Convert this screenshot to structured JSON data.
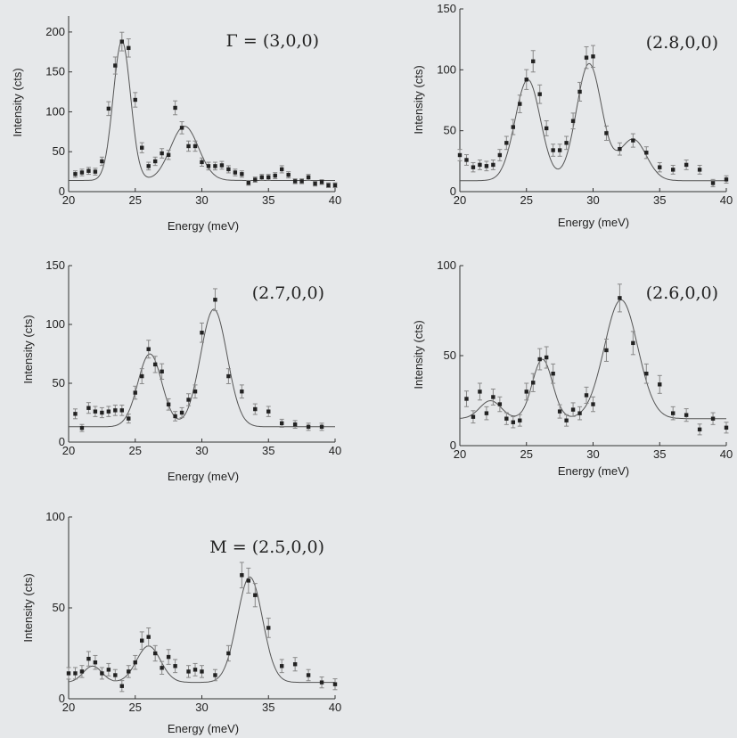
{
  "colors": {
    "background": "#e6e8ea",
    "axes": "#333333",
    "marker": "#222222",
    "errorbar": "#888888",
    "fit": "#555555"
  },
  "chart_data": [
    {
      "type": "scatter",
      "title": "Γ = (3,0,0)",
      "xlabel": "Energy (meV)",
      "ylabel": "Intensity (cts)",
      "xlim": [
        20,
        40
      ],
      "ylim": [
        0,
        220
      ],
      "xticks": [
        20,
        25,
        30,
        35,
        40
      ],
      "yticks": [
        0,
        50,
        100,
        150,
        200
      ],
      "grid": false,
      "x": [
        20.5,
        21.0,
        21.5,
        22.0,
        22.5,
        23.0,
        23.5,
        24.0,
        24.5,
        25.0,
        25.5,
        26.0,
        26.5,
        27.0,
        27.5,
        28.0,
        28.5,
        29.0,
        29.5,
        30.0,
        30.5,
        31.0,
        31.5,
        32.0,
        32.5,
        33.0,
        33.5,
        34.0,
        34.5,
        35.0,
        35.5,
        36.0,
        36.5,
        37.0,
        37.5,
        38.0,
        38.5,
        39.0,
        39.5,
        40.0
      ],
      "y": [
        22,
        24,
        26,
        25,
        38,
        104,
        158,
        188,
        180,
        115,
        55,
        32,
        38,
        48,
        46,
        105,
        80,
        57,
        57,
        37,
        32,
        32,
        33,
        28,
        24,
        22,
        11,
        15,
        18,
        18,
        20,
        28,
        21,
        13,
        13,
        18,
        10,
        12,
        8,
        8
      ],
      "fit": {
        "baseline": 14,
        "peaks": [
          {
            "center": 24.0,
            "amplitude": 175,
            "width": 0.65
          },
          {
            "center": 28.7,
            "amplitude": 68,
            "width": 1.05
          }
        ]
      }
    },
    {
      "type": "scatter",
      "title": "(2.8,0,0)",
      "xlabel": "Energy (meV)",
      "ylabel": "Intensity (cts)",
      "xlim": [
        20,
        40
      ],
      "ylim": [
        0,
        150
      ],
      "xticks": [
        20,
        25,
        30,
        35,
        40
      ],
      "yticks": [
        0,
        50,
        100,
        150
      ],
      "grid": false,
      "x": [
        20.0,
        20.5,
        21.0,
        21.5,
        22.0,
        22.5,
        23.0,
        23.5,
        24.0,
        24.5,
        25.0,
        25.5,
        26.0,
        26.5,
        27.0,
        27.5,
        28.0,
        28.5,
        29.0,
        29.5,
        30.0,
        31.0,
        32.0,
        33.0,
        34.0,
        35.0,
        36.0,
        37.0,
        38.0,
        39.0,
        40.0
      ],
      "y": [
        30,
        26,
        20,
        22,
        21,
        22,
        30,
        40,
        53,
        72,
        92,
        107,
        80,
        52,
        34,
        34,
        40,
        58,
        82,
        110,
        111,
        48,
        35,
        42,
        32,
        20,
        18,
        22,
        18,
        7,
        10
      ],
      "fit": {
        "baseline": 9,
        "peaks": [
          {
            "center": 25.1,
            "amplitude": 83,
            "width": 0.95
          },
          {
            "center": 29.7,
            "amplitude": 96,
            "width": 0.95
          },
          {
            "center": 33.0,
            "amplitude": 34,
            "width": 1.0
          }
        ]
      }
    },
    {
      "type": "scatter",
      "title": "(2.7,0,0)",
      "xlabel": "Energy (meV)",
      "ylabel": "Intensity (cts)",
      "xlim": [
        20,
        40
      ],
      "ylim": [
        0,
        150
      ],
      "xticks": [
        20,
        25,
        30,
        35,
        40
      ],
      "yticks": [
        0,
        50,
        100,
        150
      ],
      "grid": false,
      "x": [
        20.5,
        21.0,
        21.5,
        22.0,
        22.5,
        23.0,
        23.5,
        24.0,
        24.5,
        25.0,
        25.5,
        26.0,
        26.5,
        27.0,
        27.5,
        28.0,
        28.5,
        29.0,
        29.5,
        30.0,
        31.0,
        32.0,
        33.0,
        34.0,
        35.0,
        36.0,
        37.0,
        38.0,
        39.0
      ],
      "y": [
        24,
        12,
        29,
        26,
        25,
        26,
        27,
        27,
        20,
        42,
        56,
        79,
        66,
        60,
        32,
        22,
        25,
        36,
        43,
        93,
        121,
        56,
        43,
        28,
        26,
        16,
        15,
        13,
        13
      ],
      "fit": {
        "baseline": 13,
        "peaks": [
          {
            "center": 26.1,
            "amplitude": 62,
            "width": 0.9
          },
          {
            "center": 30.9,
            "amplitude": 100,
            "width": 1.0
          }
        ]
      }
    },
    {
      "type": "scatter",
      "title": "(2.6,0,0)",
      "xlabel": "Energy (meV)",
      "ylabel": "Intensity (cts)",
      "xlim": [
        20,
        40
      ],
      "ylim": [
        0,
        100
      ],
      "xticks": [
        20,
        25,
        30,
        35,
        40
      ],
      "yticks": [
        0,
        50,
        100
      ],
      "grid": false,
      "x": [
        20.5,
        21.0,
        21.5,
        22.0,
        22.5,
        23.0,
        23.5,
        24.0,
        24.5,
        25.0,
        25.5,
        26.0,
        26.5,
        27.0,
        27.5,
        28.0,
        28.5,
        29.0,
        29.5,
        30.0,
        31.0,
        32.0,
        33.0,
        34.0,
        35.0,
        36.0,
        37.0,
        38.0,
        39.0,
        40.0
      ],
      "y": [
        26,
        16,
        30,
        18,
        27,
        23,
        15,
        13,
        14,
        30,
        35,
        48,
        49,
        40,
        19,
        14,
        20,
        18,
        28,
        23,
        53,
        82,
        57,
        40,
        34,
        18,
        17,
        9,
        15,
        10
      ],
      "fit": {
        "baseline": 15,
        "peaks": [
          {
            "center": 22.3,
            "amplitude": 10,
            "width": 0.8
          },
          {
            "center": 26.2,
            "amplitude": 33,
            "width": 0.75
          },
          {
            "center": 32.1,
            "amplitude": 66,
            "width": 1.25
          }
        ]
      }
    },
    {
      "type": "scatter",
      "title": "M = (2.5,0,0)",
      "xlabel": "Energy (meV)",
      "ylabel": "Intensity (cts)",
      "xlim": [
        20,
        40
      ],
      "ylim": [
        0,
        100
      ],
      "xticks": [
        20,
        25,
        30,
        35,
        40
      ],
      "yticks": [
        0,
        50,
        100
      ],
      "grid": false,
      "x": [
        20.0,
        20.5,
        21.0,
        21.5,
        22.0,
        22.5,
        23.0,
        23.5,
        24.0,
        24.5,
        25.0,
        25.5,
        26.0,
        26.5,
        27.0,
        27.5,
        28.0,
        29.0,
        29.5,
        30.0,
        31.0,
        32.0,
        33.0,
        33.5,
        34.0,
        35.0,
        36.0,
        37.0,
        38.0,
        39.0,
        40.0
      ],
      "y": [
        14,
        14,
        15,
        22,
        20,
        14,
        16,
        13,
        7,
        15,
        20,
        32,
        34,
        25,
        17,
        23,
        18,
        15,
        16,
        15,
        13,
        25,
        68,
        65,
        57,
        39,
        18,
        19,
        13,
        9,
        8
      ],
      "fit": {
        "baseline": 9,
        "peaks": [
          {
            "center": 21.8,
            "amplitude": 9,
            "width": 0.7
          },
          {
            "center": 26.0,
            "amplitude": 20,
            "width": 0.9
          },
          {
            "center": 33.6,
            "amplitude": 58,
            "width": 0.95
          }
        ]
      }
    }
  ]
}
